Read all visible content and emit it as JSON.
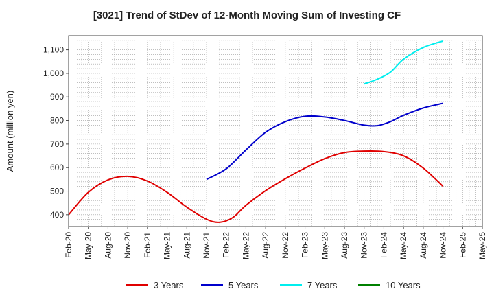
{
  "chart_data": {
    "type": "line",
    "title": "[3021]  Trend of StDev of 12-Month Moving Sum of Investing CF",
    "xlabel": "",
    "ylabel": "Amount (million yen)",
    "ylim": [
      350,
      1160
    ],
    "y_ticks": [
      400,
      500,
      600,
      700,
      800,
      900,
      1000,
      1100
    ],
    "y_tick_labels": [
      "400",
      "500",
      "600",
      "700",
      "800",
      "900",
      "1,000",
      "1,100"
    ],
    "x_ticks": [
      "Feb-20",
      "May-20",
      "Aug-20",
      "Nov-20",
      "Feb-21",
      "May-21",
      "Aug-21",
      "Nov-21",
      "Feb-22",
      "May-22",
      "Aug-22",
      "Nov-22",
      "Feb-23",
      "May-23",
      "Aug-23",
      "Nov-23",
      "Feb-24",
      "May-24",
      "Aug-24",
      "Nov-24",
      "Feb-25",
      "May-25"
    ],
    "grid": true,
    "legend_position": "bottom",
    "series": [
      {
        "name": "3 Years",
        "color": "#e00000",
        "points": [
          [
            "Feb-20",
            400
          ],
          [
            "May-20",
            495
          ],
          [
            "Aug-20",
            548
          ],
          [
            "Nov-20",
            563
          ],
          [
            "Feb-21",
            543
          ],
          [
            "May-21",
            495
          ],
          [
            "Aug-21",
            432
          ],
          [
            "Nov-21",
            381
          ],
          [
            "Jan-22",
            368
          ],
          [
            "Mar-22",
            388
          ],
          [
            "May-22",
            440
          ],
          [
            "Aug-22",
            502
          ],
          [
            "Nov-22",
            553
          ],
          [
            "Feb-23",
            598
          ],
          [
            "May-23",
            638
          ],
          [
            "Aug-23",
            664
          ],
          [
            "Nov-23",
            670
          ],
          [
            "Feb-24",
            668
          ],
          [
            "May-24",
            650
          ],
          [
            "Aug-24",
            598
          ],
          [
            "Nov-24",
            521
          ]
        ]
      },
      {
        "name": "5 Years",
        "color": "#0000cc",
        "points": [
          [
            "Nov-21",
            550
          ],
          [
            "Feb-22",
            595
          ],
          [
            "May-22",
            675
          ],
          [
            "Aug-22",
            750
          ],
          [
            "Nov-22",
            795
          ],
          [
            "Feb-23",
            818
          ],
          [
            "May-23",
            815
          ],
          [
            "Aug-23",
            800
          ],
          [
            "Nov-23",
            780
          ],
          [
            "Jan-24",
            778
          ],
          [
            "Mar-24",
            795
          ],
          [
            "May-24",
            822
          ],
          [
            "Aug-24",
            853
          ],
          [
            "Nov-24",
            873
          ]
        ]
      },
      {
        "name": "7 Years",
        "color": "#00eeee",
        "points": [
          [
            "Nov-23",
            955
          ],
          [
            "Jan-24",
            975
          ],
          [
            "Mar-24",
            1005
          ],
          [
            "May-24",
            1060
          ],
          [
            "Aug-24",
            1110
          ],
          [
            "Nov-24",
            1137
          ]
        ]
      },
      {
        "name": "10 Years",
        "color": "#008000",
        "points": []
      }
    ]
  }
}
